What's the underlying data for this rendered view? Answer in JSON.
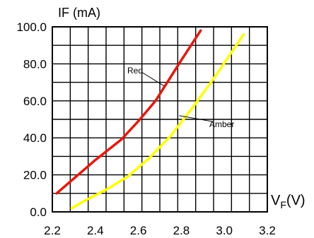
{
  "chart_data": {
    "type": "line",
    "ylabel": "IF (mA)",
    "xlabel_main": "V",
    "xlabel_sub": "F",
    "xlabel_unit": "(V)",
    "xlim": [
      2.2,
      3.2
    ],
    "ylim": [
      0,
      100
    ],
    "xticks": [
      "2.2",
      "2.4",
      "2.6",
      "2.8",
      "3.0",
      "3.2"
    ],
    "yticks": [
      "0.0",
      "20.0",
      "40.0",
      "60.0",
      "80.0",
      "100.0"
    ],
    "grid": true,
    "series": [
      {
        "name": "Red",
        "color": "#e8160c",
        "x": [
          2.22,
          2.3,
          2.4,
          2.52,
          2.6,
          2.68,
          2.74,
          2.8,
          2.89
        ],
        "y": [
          10,
          18,
          28,
          39,
          49,
          60,
          71,
          82,
          98
        ]
      },
      {
        "name": "Amber",
        "color": "#ffff00",
        "x": [
          2.29,
          2.35,
          2.45,
          2.55,
          2.65,
          2.75,
          2.85,
          2.95,
          3.05,
          3.09
        ],
        "y": [
          2,
          6,
          12,
          19,
          29,
          41,
          56,
          72,
          89,
          96
        ]
      }
    ],
    "annotations": [
      {
        "text": "Red",
        "series": "Red"
      },
      {
        "text": "Amber",
        "series": "Amber"
      }
    ]
  }
}
